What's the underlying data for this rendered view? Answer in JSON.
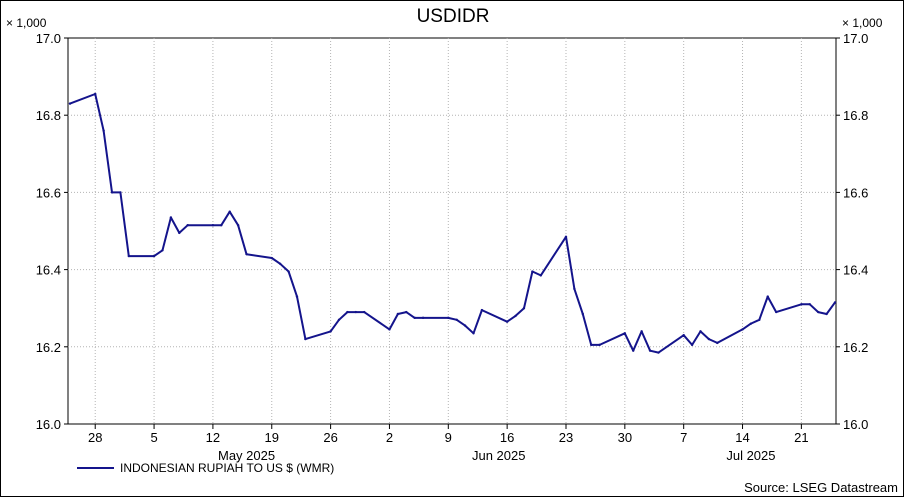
{
  "chart_data": {
    "type": "line",
    "title": "USDIDR",
    "y_multiplier_label": "× 1,000",
    "ylim": [
      16.0,
      17.0
    ],
    "y_ticks": [
      "17.0",
      "16.8",
      "16.6",
      "16.4",
      "16.2",
      "16.0"
    ],
    "x_tick_labels": [
      "28",
      "5",
      "12",
      "19",
      "26",
      "2",
      "9",
      "16",
      "23",
      "30",
      "7",
      "14",
      "21"
    ],
    "x_month_labels": [
      "May 2025",
      "Jun 2025",
      "Jul 2025"
    ],
    "grid": true,
    "legend_position": "bottom-left",
    "line_color": "#14148c",
    "source": "Source: LSEG Datastream",
    "series": [
      {
        "name": "INDONESIAN RUPIAH TO US $ (WMR)",
        "dates": [
          "2025-04-25",
          "2025-04-28",
          "2025-04-29",
          "2025-04-30",
          "2025-05-01",
          "2025-05-02",
          "2025-05-05",
          "2025-05-06",
          "2025-05-07",
          "2025-05-08",
          "2025-05-09",
          "2025-05-12",
          "2025-05-13",
          "2025-05-14",
          "2025-05-15",
          "2025-05-16",
          "2025-05-19",
          "2025-05-20",
          "2025-05-21",
          "2025-05-22",
          "2025-05-23",
          "2025-05-26",
          "2025-05-27",
          "2025-05-28",
          "2025-05-29",
          "2025-05-30",
          "2025-06-02",
          "2025-06-03",
          "2025-06-04",
          "2025-06-05",
          "2025-06-06",
          "2025-06-09",
          "2025-06-10",
          "2025-06-11",
          "2025-06-12",
          "2025-06-13",
          "2025-06-16",
          "2025-06-17",
          "2025-06-18",
          "2025-06-19",
          "2025-06-20",
          "2025-06-23",
          "2025-06-24",
          "2025-06-25",
          "2025-06-26",
          "2025-06-27",
          "2025-06-30",
          "2025-07-01",
          "2025-07-02",
          "2025-07-03",
          "2025-07-04",
          "2025-07-07",
          "2025-07-08",
          "2025-07-09",
          "2025-07-10",
          "2025-07-11",
          "2025-07-14",
          "2025-07-15",
          "2025-07-16",
          "2025-07-17",
          "2025-07-18",
          "2025-07-21",
          "2025-07-22",
          "2025-07-23",
          "2025-07-24",
          "2025-07-25"
        ],
        "values": [
          16.83,
          16.855,
          16.76,
          16.6,
          16.6,
          16.435,
          16.435,
          16.45,
          16.535,
          16.495,
          16.515,
          16.515,
          16.515,
          16.55,
          16.515,
          16.44,
          16.43,
          16.415,
          16.395,
          16.33,
          16.22,
          16.24,
          16.27,
          16.29,
          16.29,
          16.29,
          16.245,
          16.285,
          16.29,
          16.275,
          16.275,
          16.275,
          16.27,
          16.255,
          16.235,
          16.295,
          16.265,
          16.28,
          16.3,
          16.395,
          16.385,
          16.485,
          16.35,
          16.285,
          16.205,
          16.205,
          16.235,
          16.19,
          16.24,
          16.19,
          16.185,
          16.23,
          16.205,
          16.24,
          16.22,
          16.21,
          16.245,
          16.26,
          16.27,
          16.33,
          16.29,
          16.31,
          16.31,
          16.29,
          16.285,
          16.315
        ]
      }
    ]
  }
}
